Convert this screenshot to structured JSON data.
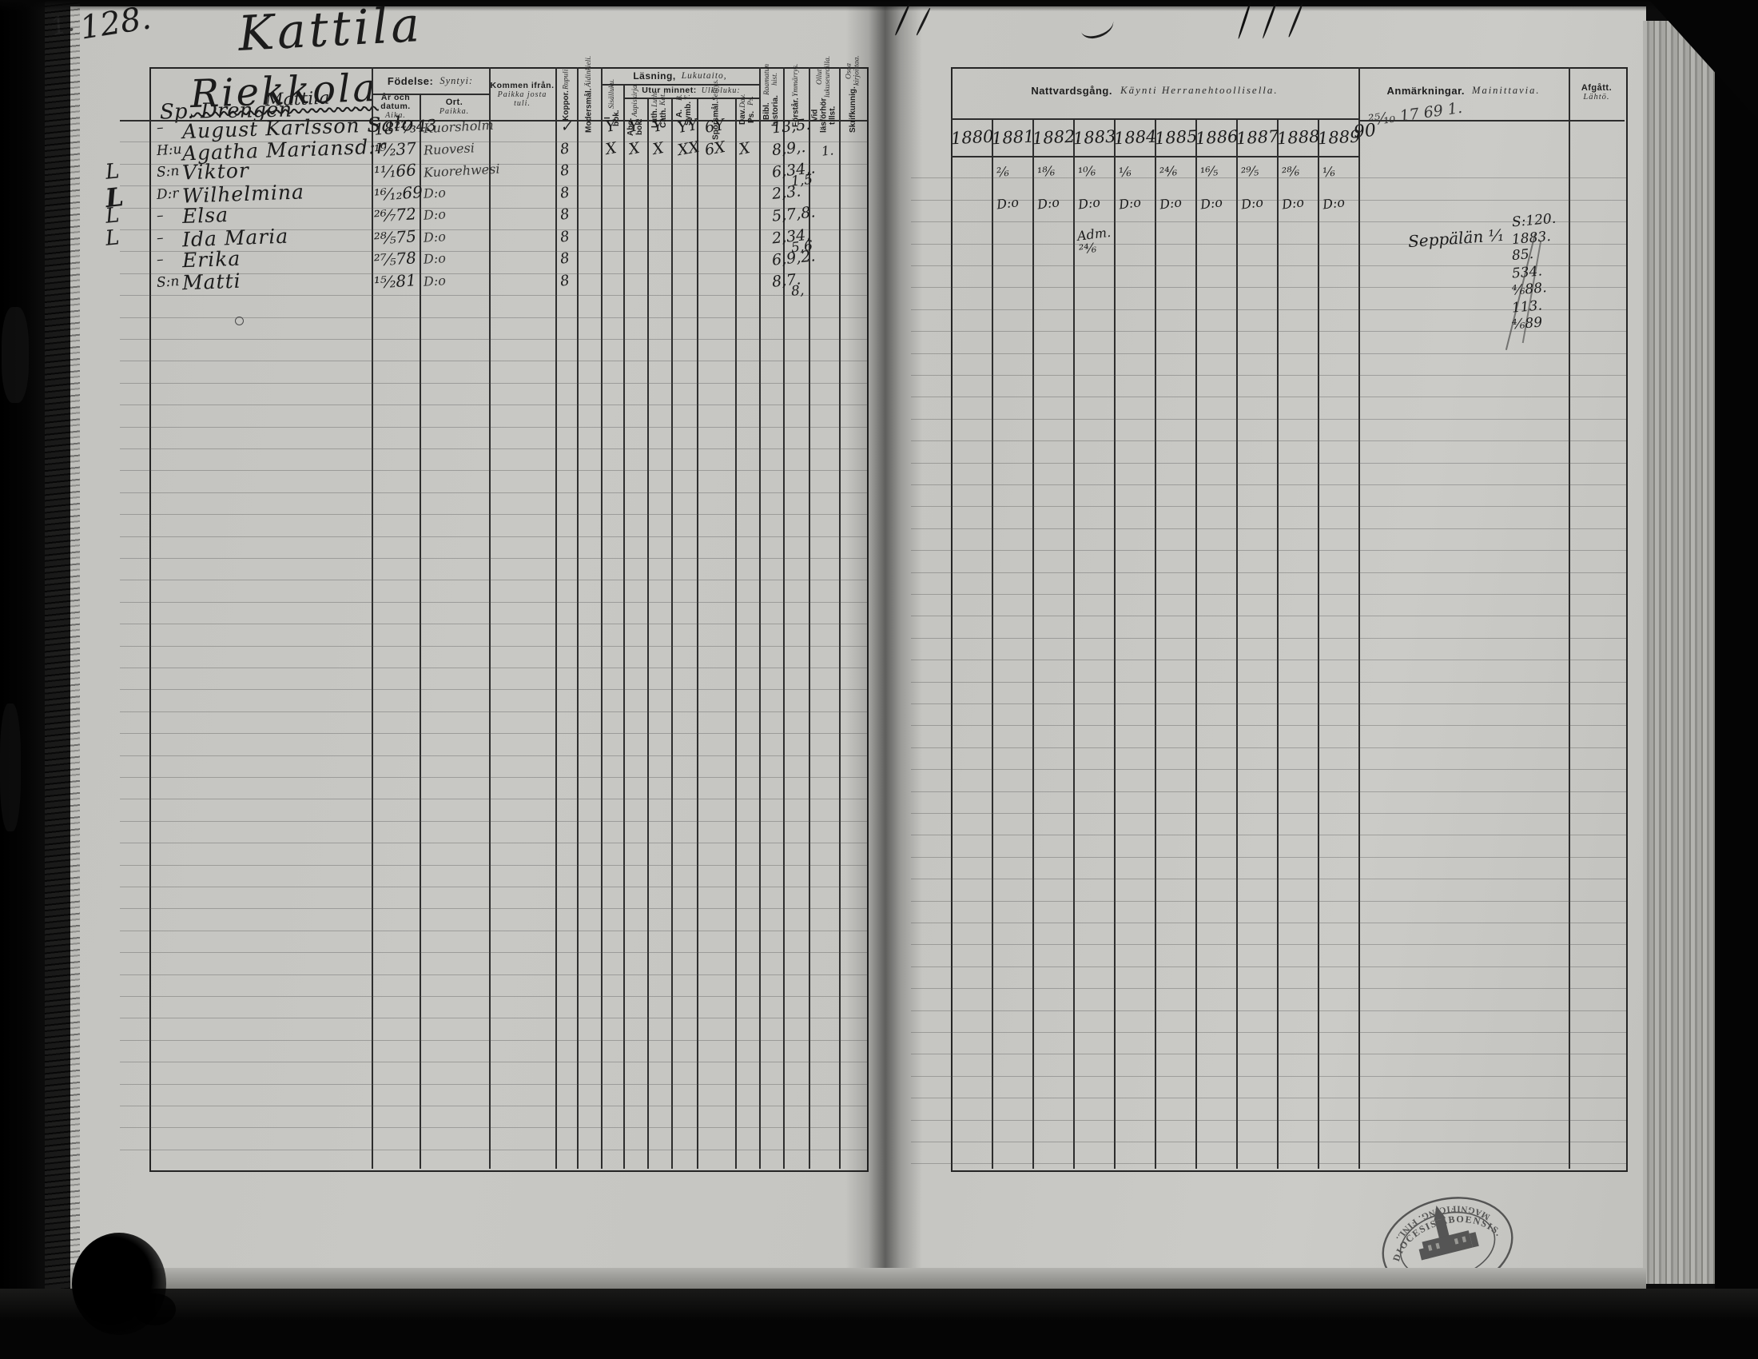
{
  "colors": {
    "paper": "#c6c6c2",
    "ink": "#1b1b1b",
    "table_line": "#2d2d2d"
  },
  "page": {
    "number": "128.",
    "corner_mark": "1.",
    "title": "Kattila"
  },
  "left_page": {
    "household": {
      "main": "Riekkola",
      "sub": "Mattila",
      "note": "Sp. Drengen"
    },
    "headers": {
      "fodelse_sv": "Födelse:",
      "fodelse_fi": "Syntyi:",
      "ar_sv": "År och datum.",
      "ar_fi": "Aika.",
      "ort_sv": "Ort.",
      "ort_fi": "Paikka.",
      "kommen_sv": "Kommen ifrån.",
      "kommen_fi": "Paikka josta tuli.",
      "koppor_sv": "Koppor.",
      "koppor_fi": "Rupuli.",
      "modersmal_sv": "Modersmål.",
      "modersmal_fi": "Äidinkieli.",
      "lasning_sv": "Läsning,",
      "lasning_fi": "Lukutaito,",
      "ibok_sv": "I bok.",
      "ibok_fi": "Sisälluku.",
      "utur_sv": "Utur minnet:",
      "utur_fi": "Ulkoluku:",
      "abc_sv": "Abc-bok.",
      "abc_fi": "Aapiskirja.",
      "luth_sv": "Luth. Cath.",
      "luth_fi": "Luth. Kat.",
      "symb_sv": "A. Symb.",
      "symb_fi": "B. T.",
      "sporsmal_sv": "Spörsmål.",
      "sporsmal_fi": "Selitys.",
      "davps_sv": "Dav. Ps.",
      "davps_fi": "Dav. Ps.",
      "bibl_sv": "Bibl. historia.",
      "bibl_fi": "Raamatun hist.",
      "forstar_sv": "Förstår.",
      "forstar_fi": "Ymmärrys.",
      "vidlas_sv": "Vid läsförhör tillst.",
      "vidlas_fi": "Ollut lukuseuroilla.",
      "skrif_sv": "Skrifkunnig.",
      "skrif_fi": "Osaa kirjoittaa."
    },
    "rows": [
      {
        "margin": "",
        "prefix": "–",
        "name": "August Karlsson Salo",
        "born": "18²²⁄₃43",
        "ort": "Kuorsholm",
        "koppor": "✓",
        "marks": [
          "Y",
          "Y",
          "Y",
          "YY",
          "6Y",
          ""
        ],
        "fig": "13,5.",
        "fig2": "",
        "extra": ""
      },
      {
        "margin": "",
        "prefix": "H:u",
        "name": "Agatha Mariansd:r",
        "born": "¹⁹⁄₂37",
        "ort": "Ruovesi",
        "koppor": "8",
        "marks": [
          "X",
          "X",
          "X",
          "XX",
          "6X",
          "X"
        ],
        "fig": "8,9,.",
        "fig2": "",
        "extra": "1."
      },
      {
        "margin": "L",
        "prefix": "S:n",
        "name": "Viktor",
        "born": "¹¹⁄₁66",
        "ort": "Kuorehwesi",
        "koppor": "8",
        "marks": [
          "",
          "",
          "",
          "",
          "",
          ""
        ],
        "fig": "6,34,.",
        "fig2": "1,5",
        "extra": ""
      },
      {
        "margin": "L",
        "prefix": "D:r",
        "name": "Wilhelmina",
        "born": "¹⁶⁄₁₂69",
        "ort": "D:o",
        "koppor": "8",
        "marks": [
          "",
          "",
          "",
          "",
          "",
          ""
        ],
        "fig": "2,3.",
        "fig2": "",
        "extra": ""
      },
      {
        "margin": "L",
        "prefix": "–",
        "name": "Elsa",
        "born": "²⁶⁄₇72",
        "ort": "D:o",
        "koppor": "8",
        "marks": [
          "",
          "",
          "",
          "",
          "",
          ""
        ],
        "fig": "5,7,8.",
        "fig2": "",
        "extra": ""
      },
      {
        "margin": "L",
        "prefix": "–",
        "name": "Ida Maria",
        "born": "²⁸⁄₅75",
        "ort": "D:o",
        "koppor": "8",
        "marks": [
          "",
          "",
          "",
          "",
          "",
          ""
        ],
        "fig": "2,34,",
        "fig2": "5,6",
        "extra": ""
      },
      {
        "margin": "",
        "prefix": "–",
        "name": "Erika",
        "born": "²⁷⁄₅78",
        "ort": "D:o",
        "koppor": "8",
        "marks": [
          "",
          "",
          "",
          "",
          "",
          ""
        ],
        "fig": "6,9,2.",
        "fig2": "",
        "extra": ""
      },
      {
        "margin": "",
        "prefix": "S:n",
        "name": "Matti",
        "born": "¹⁵⁄₂81",
        "ort": "D:o",
        "koppor": "8",
        "marks": [
          "",
          "",
          "",
          "",
          "",
          ""
        ],
        "fig": "8,7.",
        "fig2": "8,",
        "extra": ""
      }
    ]
  },
  "right_page": {
    "headers": {
      "nattvard_sv": "Nattvardsgång.",
      "nattvard_fi": "Käynti Herranehtoollisella.",
      "anm_sv": "Anmärkningar.",
      "anm_fi": "Mainittavia.",
      "afg_sv": "Afgått.",
      "afg_fi": "Lähtö."
    },
    "years": [
      "1880.",
      "1881.",
      "1882.",
      "1883.",
      "1884.",
      "1885.",
      "1886.",
      "1887.",
      "1888.",
      "1889"
    ],
    "year_scrawl": "90",
    "corner_scrawl": "²⁵⁄₁₀ 17 69 1.",
    "communion": [
      [
        "",
        "²⁄₆",
        "¹⁸⁄₆",
        "¹⁰⁄₆",
        "¹⁄₆",
        "²⁴⁄₆",
        "¹⁶⁄₅",
        "²⁹⁄₅",
        "²⁸⁄₆",
        "¹⁄₆"
      ],
      [
        "",
        "D:o",
        "D:o",
        "D:o",
        "D:o",
        "D:o",
        "D:o",
        "D:o",
        "D:o",
        "D:o"
      ],
      [
        "",
        "",
        "",
        "Adm. ²⁴⁄₆",
        "",
        "",
        "",
        "",
        "",
        ""
      ]
    ],
    "note_seppala": "Seppälän ¹⁄₁",
    "afgatt_notes": [
      "S:120.",
      "1883.",
      "85.",
      "534.",
      "⁴⁄₆88.",
      "113.",
      "⁴⁄₆89"
    ]
  },
  "stamp": {
    "arc_top": "DIOCESIS ABOENSIS.",
    "arc_bottom": "MAGNIFICING. FINL."
  }
}
